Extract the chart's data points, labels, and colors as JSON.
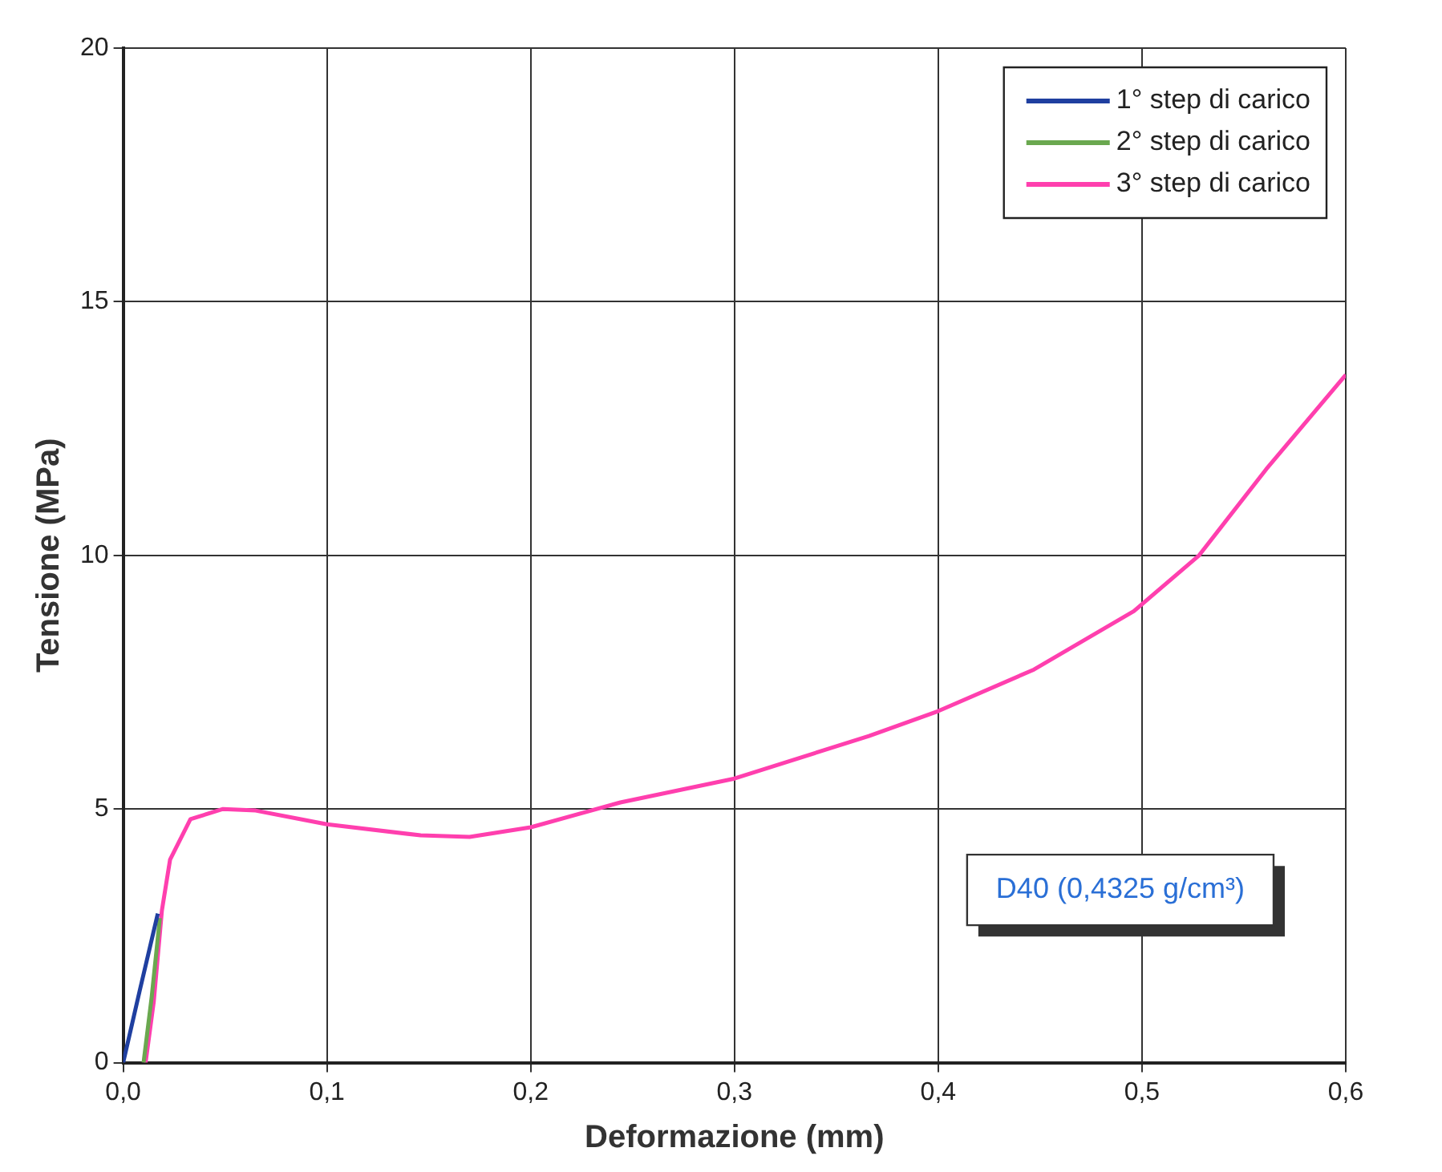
{
  "chart_data": {
    "type": "line",
    "xlabel": "Deformazione (mm)",
    "ylabel": "Tensione (MPa)",
    "xlim": [
      0,
      0.6
    ],
    "ylim": [
      0,
      20
    ],
    "xticks": [
      {
        "value": 0,
        "label": "0,0"
      },
      {
        "value": 0.1,
        "label": "0,1"
      },
      {
        "value": 0.2,
        "label": "0,2"
      },
      {
        "value": 0.3,
        "label": "0,3"
      },
      {
        "value": 0.4,
        "label": "0,4"
      },
      {
        "value": 0.5,
        "label": "0,5"
      },
      {
        "value": 0.6,
        "label": "0,6"
      }
    ],
    "yticks": [
      0,
      5,
      10,
      15,
      20
    ],
    "grid": true,
    "legend": "top right",
    "annotations": [
      "D40 (0,4325 g/cm³)"
    ],
    "series": [
      {
        "name": "1° step di carico",
        "color": "#1f3fa0",
        "x": [
          0,
          0.008,
          0.017
        ],
        "values": [
          0,
          1.4,
          2.94
        ]
      },
      {
        "name": "2° step di carico",
        "color": "#6aa84f",
        "x": [
          0.01,
          0.014,
          0.018
        ],
        "values": [
          0,
          1.3,
          2.85
        ]
      },
      {
        "name": "3° step di carico",
        "color": "#ff3fae",
        "x": [
          0.011,
          0.015,
          0.019,
          0.023,
          0.033,
          0.049,
          0.065,
          0.1,
          0.146,
          0.17,
          0.2,
          0.244,
          0.3,
          0.366,
          0.4,
          0.447,
          0.496,
          0.528,
          0.561,
          0.6
        ],
        "values": [
          0,
          1.2,
          3,
          4.0,
          4.8,
          5.0,
          4.97,
          4.7,
          4.48,
          4.45,
          4.64,
          5.13,
          5.6,
          6.44,
          6.93,
          7.75,
          8.9,
          10.0,
          11.7,
          13.56
        ]
      }
    ]
  }
}
